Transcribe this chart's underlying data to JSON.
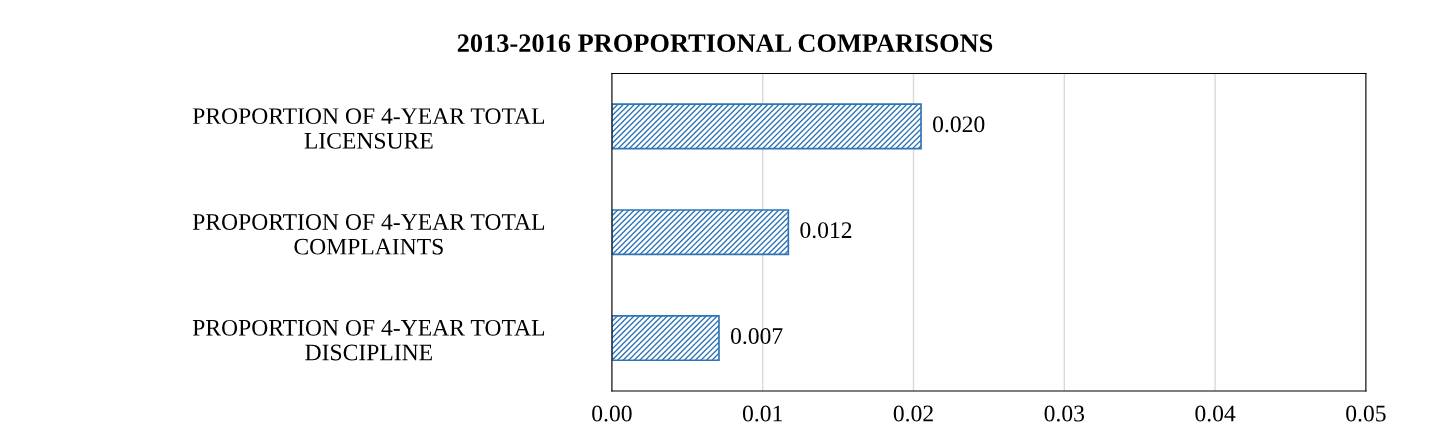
{
  "chart_data": {
    "type": "bar",
    "orientation": "horizontal",
    "title": "2013-2016 PROPORTIONAL COMPARISONS",
    "categories": [
      "PROPORTION OF 4-YEAR TOTAL\nLICENSURE",
      "PROPORTION OF 4-YEAR TOTAL\nCOMPLAINTS",
      "PROPORTION OF 4-YEAR TOTAL\nDISCIPLINE"
    ],
    "values": [
      0.0205,
      0.0117,
      0.0071
    ],
    "value_labels": [
      "0.020",
      "0.012",
      "0.007"
    ],
    "color": "#2e75b6",
    "xlim": [
      0,
      0.05
    ],
    "xticks": [
      {
        "value": 0,
        "label": "0.00"
      },
      {
        "value": 0.01,
        "label": "0.01"
      },
      {
        "value": 0.02,
        "label": "0.02"
      },
      {
        "value": 0.03,
        "label": "0.03"
      },
      {
        "value": 0.04,
        "label": "0.04"
      },
      {
        "value": 0.05,
        "label": "0.05"
      }
    ],
    "grid": "x"
  }
}
